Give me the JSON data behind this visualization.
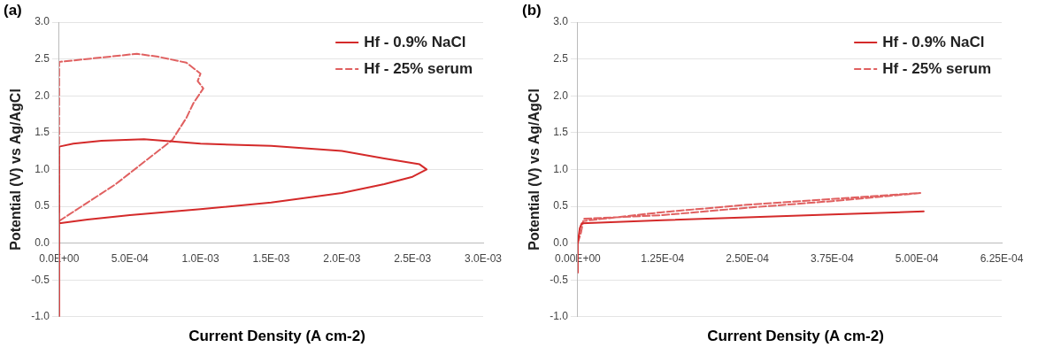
{
  "chart_data": [
    {
      "type": "line",
      "title": "(a)",
      "xlabel": "Current Density (A cm-2)",
      "ylabel": "Potential (V) vs Ag/AgCl",
      "xlim": [
        0,
        0.003
      ],
      "xticks": [
        {
          "value": 0,
          "label": "0.0E+00"
        },
        {
          "value": 0.0005,
          "label": "5.0E-04"
        },
        {
          "value": 0.001,
          "label": "1.0E-03"
        },
        {
          "value": 0.0015,
          "label": "1.5E-03"
        },
        {
          "value": 0.002,
          "label": "2.0E-03"
        },
        {
          "value": 0.0025,
          "label": "2.5E-03"
        },
        {
          "value": 0.003,
          "label": "3.0E-03"
        }
      ],
      "ylim": [
        -1,
        3
      ],
      "yticks": [
        {
          "value": -1,
          "label": "-1.0"
        },
        {
          "value": -0.5,
          "label": "-0.5"
        },
        {
          "value": 0,
          "label": "0.0"
        },
        {
          "value": 0.5,
          "label": "0.5"
        },
        {
          "value": 1,
          "label": "1.0"
        },
        {
          "value": 1.5,
          "label": "1.5"
        },
        {
          "value": 2,
          "label": "2.0"
        },
        {
          "value": 2.5,
          "label": "2.5"
        },
        {
          "value": 3,
          "label": "3.0"
        }
      ],
      "grid": "y",
      "legend": "top right",
      "marker": "none",
      "series": [
        {
          "name": "Hf - 0.9% NaCl",
          "color": "#d42a2a",
          "line_style": "solid",
          "x": [
            0,
            0,
            0.0002,
            0.0005,
            0.001,
            0.0015,
            0.002,
            0.0023,
            0.0025,
            0.0026,
            0.00255,
            0.0023,
            0.002,
            0.0015,
            0.001,
            0.0006,
            0.0003,
            0.0001,
            0,
            0
          ],
          "values": [
            -1,
            0.27,
            0.32,
            0.38,
            0.46,
            0.55,
            0.68,
            0.8,
            0.9,
            1.0,
            1.07,
            1.15,
            1.25,
            1.32,
            1.35,
            1.41,
            1.39,
            1.35,
            1.31,
            0.27
          ]
        },
        {
          "name": "Hf - 25% serum",
          "color": "#e06060",
          "line_style": "dashed",
          "x": [
            0,
            0.0002,
            0.0004,
            0.0006,
            0.0008,
            0.0009,
            0.00095,
            0.00102,
            0.00098,
            0.001,
            0.0009,
            0.0007,
            0.00055,
            0.0003,
            0,
            0
          ],
          "values": [
            0.3,
            0.55,
            0.8,
            1.1,
            1.4,
            1.7,
            1.9,
            2.1,
            2.2,
            2.3,
            2.45,
            2.53,
            2.57,
            2.52,
            2.46,
            0.4
          ]
        }
      ]
    },
    {
      "type": "line",
      "title": "(b)",
      "xlabel": "Current Density (A cm-2)",
      "ylabel": "Potential (V) vs Ag/AgCl",
      "xlim": [
        0,
        0.000625
      ],
      "xticks": [
        {
          "value": 0,
          "label": "0.00E+00"
        },
        {
          "value": 0.000125,
          "label": "1.25E-04"
        },
        {
          "value": 0.00025,
          "label": "2.50E-04"
        },
        {
          "value": 0.000375,
          "label": "3.75E-04"
        },
        {
          "value": 0.0005,
          "label": "5.00E-04"
        },
        {
          "value": 0.000625,
          "label": "6.25E-04"
        }
      ],
      "ylim": [
        -1,
        3
      ],
      "yticks": [
        {
          "value": -1,
          "label": "-1.0"
        },
        {
          "value": -0.5,
          "label": "-0.5"
        },
        {
          "value": 0,
          "label": "0.0"
        },
        {
          "value": 0.5,
          "label": "0.5"
        },
        {
          "value": 1,
          "label": "1.0"
        },
        {
          "value": 1.5,
          "label": "1.5"
        },
        {
          "value": 2,
          "label": "2.0"
        },
        {
          "value": 2.5,
          "label": "2.5"
        },
        {
          "value": 3,
          "label": "3.0"
        }
      ],
      "grid": "y",
      "legend": "top right",
      "marker": "none",
      "series": [
        {
          "name": "Hf - 0.9% NaCl",
          "color": "#d42a2a",
          "line_style": "solid",
          "x": [
            0,
            0,
            3e-06,
            6e-06,
            0.000125,
            0.00025,
            0.000375,
            0.00051
          ],
          "values": [
            -0.4,
            0.0,
            0.2,
            0.27,
            0.31,
            0.35,
            0.39,
            0.43
          ]
        },
        {
          "name": "Hf - 25% serum",
          "color": "#e06060",
          "line_style": "dashed",
          "x": [
            0,
            5e-06,
            8e-06,
            0.000125,
            0.00025,
            0.000375,
            0.000505,
            0.000375,
            0.00025,
            0.000125,
            8e-06
          ],
          "values": [
            0,
            0.15,
            0.3,
            0.42,
            0.52,
            0.6,
            0.68,
            0.57,
            0.48,
            0.38,
            0.33
          ]
        }
      ]
    }
  ]
}
